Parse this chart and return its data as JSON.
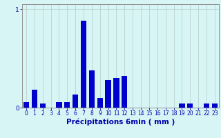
{
  "hours": [
    0,
    1,
    2,
    3,
    4,
    5,
    6,
    7,
    8,
    9,
    10,
    11,
    12,
    13,
    14,
    15,
    16,
    17,
    18,
    19,
    20,
    21,
    22,
    23
  ],
  "values": [
    0.055,
    0.18,
    0.04,
    0.0,
    0.055,
    0.055,
    0.13,
    0.88,
    0.38,
    0.1,
    0.28,
    0.3,
    0.32,
    0.0,
    0.0,
    0.0,
    0.0,
    0.0,
    0.0,
    0.04,
    0.04,
    0.0,
    0.04,
    0.04
  ],
  "bar_color": "#0000cc",
  "bg_color": "#d8f5f5",
  "grid_color": "#b8c8c8",
  "axis_color": "#909090",
  "text_color": "#0000aa",
  "xlabel": "Précipitations 6min ( mm )",
  "xlim": [
    -0.5,
    23.5
  ],
  "ylim": [
    0,
    1.05
  ],
  "ytick_labels": [
    "0",
    "1"
  ],
  "xlabel_fontsize": 7.5,
  "tick_fontsize": 5.5
}
